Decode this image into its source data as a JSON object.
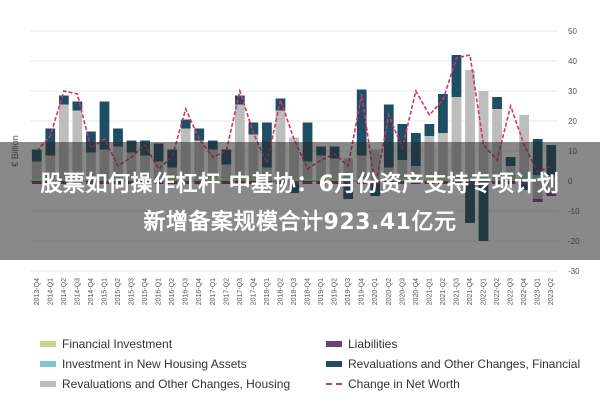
{
  "overlay": {
    "line1": "股票如何操作杠杆 中基协：6月份资产支持专项计划",
    "line2": "新增备案规模合计923.41亿元"
  },
  "colors": {
    "financial_investment": "#c8d48a",
    "new_housing": "#7fc8c4",
    "revaluations_housing": "#bdbdbd",
    "liabilities": "#6b3f7a",
    "revaluations_financial": "#1d4e63",
    "net_worth": "#d6336c"
  },
  "chart_data": {
    "type": "bar",
    "ylabel": "€ Billion",
    "ylim": [
      -30,
      50
    ],
    "yticks": [
      "50",
      "40",
      "30",
      "20",
      "10",
      "0",
      "-10",
      "-20",
      "-30"
    ],
    "categories": [
      "2013-Q4",
      "2014-Q1",
      "2014-Q2",
      "2014-Q3",
      "2014-Q4",
      "2015-Q1",
      "2015-Q2",
      "2015-Q3",
      "2015-Q4",
      "2016-Q1",
      "2016-Q2",
      "2016-Q3",
      "2016-Q4",
      "2017-Q1",
      "2017-Q2",
      "2017-Q3",
      "2017-Q4",
      "2018-Q1",
      "2018-Q2",
      "2018-Q3",
      "2018-Q4",
      "2019-Q1",
      "2019-Q2",
      "2019-Q3",
      "2019-Q4",
      "2020-Q1",
      "2020-Q2",
      "2020-Q3",
      "2020-Q4",
      "2021-Q1",
      "2021-Q2",
      "2021-Q3",
      "2021-Q4",
      "2022-Q1",
      "2022-Q2",
      "2022-Q3",
      "2022-Q4",
      "2023-Q1",
      "2023-Q2"
    ],
    "series": [
      {
        "name": "Financial Investment",
        "key": "financial_investment",
        "values": [
          1,
          1,
          1,
          1,
          1,
          1,
          1,
          1,
          1,
          1,
          1,
          1,
          1,
          1,
          1,
          1,
          1,
          1,
          1,
          1,
          1,
          1,
          1,
          1,
          1,
          1,
          1,
          1,
          1,
          1,
          1,
          1,
          1,
          1,
          1,
          1,
          1,
          1,
          1
        ]
      },
      {
        "name": "Investment in New Housing Assets",
        "key": "new_housing",
        "values": [
          0.5,
          0.5,
          0.5,
          0.5,
          0.5,
          0.5,
          0.5,
          0.5,
          0.5,
          0.5,
          0.5,
          0.5,
          0.5,
          0.5,
          0.5,
          0.5,
          0.5,
          0.5,
          0.5,
          0.5,
          0.5,
          0.5,
          0.5,
          0.5,
          0.5,
          0.5,
          0.5,
          1,
          1,
          1,
          1,
          1,
          1,
          1,
          1,
          1,
          1,
          1,
          1
        ]
      },
      {
        "name": "Revaluations and Other Changes, Housing",
        "key": "revaluations_housing",
        "values": [
          5,
          7,
          24,
          22,
          8,
          9,
          10,
          8,
          7,
          5,
          3,
          16,
          12,
          9,
          4,
          24,
          14,
          3,
          22,
          13,
          5,
          7,
          6,
          6,
          7,
          9,
          3,
          5,
          3,
          13,
          14,
          26,
          35,
          28,
          22,
          3,
          20,
          -6,
          -4
        ]
      },
      {
        "name": "Liabilities",
        "key": "liabilities",
        "values": [
          -1,
          -1,
          -1,
          -1,
          -1,
          -1,
          -1,
          -1,
          -1,
          -1,
          -1,
          -1,
          -1,
          -1,
          -1,
          -1,
          -1,
          -1,
          -1,
          -1,
          -1,
          -1,
          -1,
          -1,
          -1,
          -1,
          -1,
          -1,
          -1,
          -1,
          -1,
          -1,
          -1,
          -1,
          -1,
          -1,
          -1,
          -1,
          -1
        ]
      },
      {
        "name": "Revaluations and Other Changes, Financial",
        "key": "revaluations_financial",
        "values": [
          4,
          9,
          3,
          3,
          7,
          16,
          6,
          4,
          5,
          6,
          6,
          3,
          4,
          3,
          5,
          3,
          4,
          15,
          4,
          -3,
          13,
          3,
          4,
          -5,
          22,
          -4,
          21,
          12,
          11,
          4,
          13,
          14,
          -13,
          -19,
          4,
          3,
          -2,
          12,
          10
        ]
      }
    ],
    "net_worth": {
      "name": "Change in Net Worth",
      "values": [
        10,
        15,
        30,
        29,
        11,
        14,
        5,
        8,
        12,
        4,
        8,
        24,
        14,
        8,
        10,
        30,
        16,
        6,
        27,
        14,
        4,
        7,
        9,
        5,
        29,
        -2,
        22,
        11,
        30,
        22,
        27,
        41,
        42,
        12,
        7,
        25,
        12,
        3,
        5
      ]
    }
  }
}
